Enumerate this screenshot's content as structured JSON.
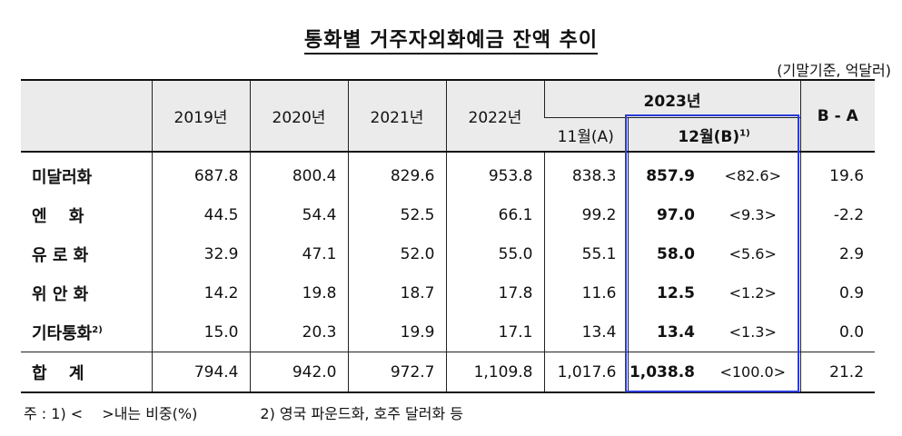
{
  "title": "통화별 거주자외화예금 잔액 추이",
  "unit": "(기말기준, 억달러)",
  "header": {
    "years": [
      "2019년",
      "2020년",
      "2021년",
      "2022년"
    ],
    "year_2023": "2023년",
    "nov": "11월(A)",
    "dec": "12월(B)",
    "dec_note": "1)",
    "diff": "B - A"
  },
  "rows": [
    {
      "label": "미달러화",
      "note": "",
      "values": [
        "687.8",
        "800.4",
        "829.6",
        "953.8",
        "838.3",
        "857.9"
      ],
      "share": "<82.6>",
      "diff": "19.6"
    },
    {
      "label": "엔　 화",
      "note": "",
      "values": [
        "44.5",
        "54.4",
        "52.5",
        "66.1",
        "99.2",
        "97.0"
      ],
      "share": "<9.3>",
      "diff": "-2.2"
    },
    {
      "label": "유 로 화",
      "note": "",
      "values": [
        "32.9",
        "47.1",
        "52.0",
        "55.0",
        "55.1",
        "58.0"
      ],
      "share": "<5.6>",
      "diff": "2.9"
    },
    {
      "label": "위 안 화",
      "note": "",
      "values": [
        "14.2",
        "19.8",
        "18.7",
        "17.8",
        "11.6",
        "12.5"
      ],
      "share": "<1.2>",
      "diff": "0.9"
    },
    {
      "label": "기타통화",
      "note": "2)",
      "values": [
        "15.0",
        "20.3",
        "19.9",
        "17.1",
        "13.4",
        "13.4"
      ],
      "share": "<1.3>",
      "diff": "0.0"
    }
  ],
  "total": {
    "label": "합　 계",
    "values": [
      "794.4",
      "942.0",
      "972.7",
      "1,109.8",
      "1,017.6",
      "1,038.8"
    ],
    "share": "<100.0>",
    "diff": "21.2"
  },
  "footnote": "주 : 1) <　 >내는 비중(%)　　　　 2) 영국 파운드화, 호주 달러화 등",
  "colors": {
    "highlight_border": "#2a3bd8",
    "header_bg": "#ebebeb"
  }
}
